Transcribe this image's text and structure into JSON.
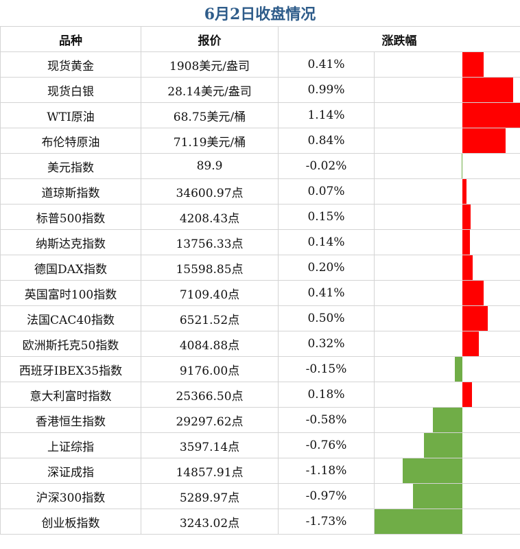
{
  "title": "6月2日收盘情况",
  "headers": {
    "name": "品种",
    "price": "报价",
    "change": "涨跌幅"
  },
  "colors": {
    "up": "#ff0000",
    "down": "#70ad47",
    "title": "#2e5c8a",
    "grid": "#d4d4d4"
  },
  "chart_data": {
    "type": "table",
    "title": "6月2日收盘情况",
    "columns": [
      "品种",
      "报价",
      "涨跌幅"
    ],
    "bar_range": [
      -1.73,
      1.14
    ],
    "rows": [
      {
        "name": "现货黄金",
        "price": "1908美元/盎司",
        "change_text": "0.41%",
        "change": 0.41
      },
      {
        "name": "现货白银",
        "price": "28.14美元/盎司",
        "change_text": "0.99%",
        "change": 0.99
      },
      {
        "name": "WTI原油",
        "price": "68.75美元/桶",
        "change_text": "1.14%",
        "change": 1.14
      },
      {
        "name": "布伦特原油",
        "price": "71.19美元/桶",
        "change_text": "0.84%",
        "change": 0.84
      },
      {
        "name": "美元指数",
        "price": "89.9",
        "change_text": "-0.02%",
        "change": -0.02
      },
      {
        "name": "道琼斯指数",
        "price": "34600.97点",
        "change_text": "0.07%",
        "change": 0.07
      },
      {
        "name": "标普500指数",
        "price": "4208.43点",
        "change_text": "0.15%",
        "change": 0.15
      },
      {
        "name": "纳斯达克指数",
        "price": "13756.33点",
        "change_text": "0.14%",
        "change": 0.14
      },
      {
        "name": "德国DAX指数",
        "price": "15598.85点",
        "change_text": "0.20%",
        "change": 0.2
      },
      {
        "name": "英国富时100指数",
        "price": "7109.40点",
        "change_text": "0.41%",
        "change": 0.41
      },
      {
        "name": "法国CAC40指数",
        "price": "6521.52点",
        "change_text": "0.50%",
        "change": 0.5
      },
      {
        "name": "欧洲斯托克50指数",
        "price": "4084.88点",
        "change_text": "0.32%",
        "change": 0.32
      },
      {
        "name": "西班牙IBEX35指数",
        "price": "9176.00点",
        "change_text": "-0.15%",
        "change": -0.15
      },
      {
        "name": "意大利富时指数",
        "price": "25366.50点",
        "change_text": "0.18%",
        "change": 0.18
      },
      {
        "name": "香港恒生指数",
        "price": "29297.62点",
        "change_text": "-0.58%",
        "change": -0.58
      },
      {
        "name": "上证综指",
        "price": "3597.14点",
        "change_text": "-0.76%",
        "change": -0.76
      },
      {
        "name": "深证成指",
        "price": "14857.91点",
        "change_text": "-1.18%",
        "change": -1.18
      },
      {
        "name": "沪深300指数",
        "price": "5289.97点",
        "change_text": "-0.97%",
        "change": -0.97
      },
      {
        "name": "创业板指数",
        "price": "3243.02点",
        "change_text": "-1.73%",
        "change": -1.73
      }
    ]
  }
}
